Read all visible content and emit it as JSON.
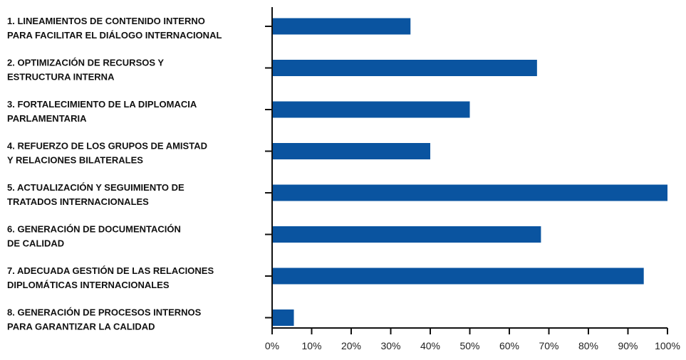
{
  "chart_data": {
    "type": "bar",
    "orientation": "horizontal",
    "categories": [
      [
        "1. LINEAMIENTOS DE CONTENIDO INTERNO",
        "PARA FACILITAR EL DIÁLOGO INTERNACIONAL"
      ],
      [
        "2. OPTIMIZACIÓN DE RECURSOS Y",
        "ESTRUCTURA INTERNA"
      ],
      [
        "3. FORTALECIMIENTO DE LA DIPLOMACIA",
        "PARLAMENTARIA"
      ],
      [
        "4. REFUERZO DE LOS GRUPOS DE AMISTAD",
        "Y RELACIONES BILATERALES"
      ],
      [
        "5. ACTUALIZACIÓN Y SEGUIMIENTO DE",
        "TRATADOS INTERNACIONALES"
      ],
      [
        "6. GENERACIÓN DE DOCUMENTACIÓN",
        "DE CALIDAD"
      ],
      [
        "7. ADECUADA GESTIÓN DE LAS RELACIONES",
        "DIPLOMÁTICAS INTERNACIONALES"
      ],
      [
        "8. GENERACIÓN DE PROCESOS INTERNOS",
        "PARA GARANTIZAR LA CALIDAD"
      ]
    ],
    "values": [
      35,
      67,
      50,
      40,
      100,
      68,
      94,
      5.5
    ],
    "xlim": [
      0,
      100
    ],
    "xticks": [
      "0%",
      "10%",
      "20%",
      "30%",
      "40%",
      "50%",
      "60%",
      "70%",
      "80%",
      "90%",
      "100%"
    ],
    "title": "",
    "xlabel": "",
    "ylabel": "",
    "grid": false,
    "bar_color": "#0a54a0"
  }
}
